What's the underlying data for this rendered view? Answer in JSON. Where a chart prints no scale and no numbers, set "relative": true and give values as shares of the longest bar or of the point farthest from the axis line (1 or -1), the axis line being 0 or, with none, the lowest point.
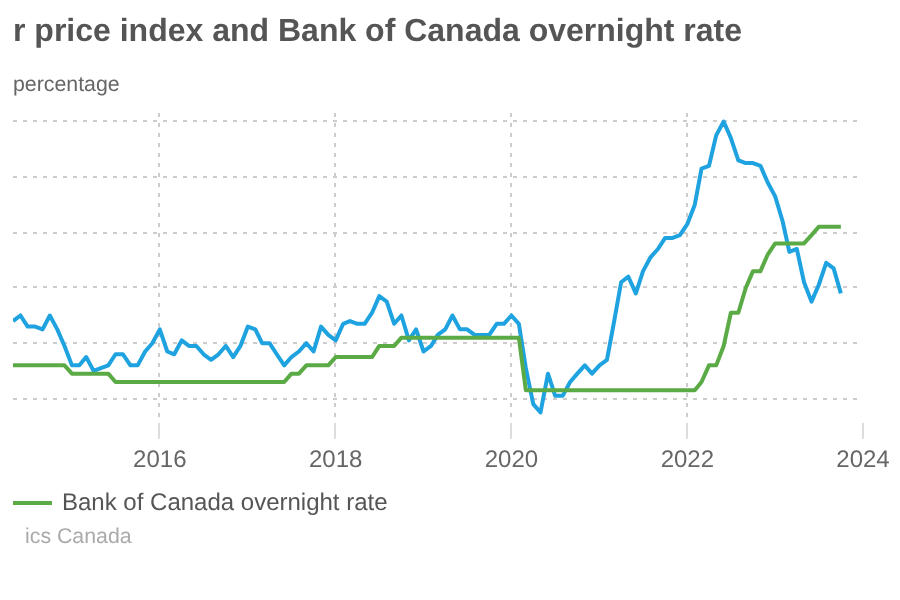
{
  "chart_data": {
    "type": "line",
    "title": "r price index and Bank of Canada overnight rate",
    "subtitle": "percentage",
    "annotations": [
      "ics Canada"
    ],
    "relative": true,
    "grid": true,
    "legend": "bottom",
    "line_style": "solid",
    "marker": "none",
    "xlim": [
      "2014-05",
      "2024-01"
    ],
    "xticks": [
      "2016",
      "2018",
      "2020",
      "2022",
      "2024"
    ],
    "x": [
      "2014-05",
      "2014-06",
      "2014-07",
      "2014-08",
      "2014-09",
      "2014-10",
      "2014-11",
      "2014-12",
      "2015-01",
      "2015-02",
      "2015-03",
      "2015-04",
      "2015-05",
      "2015-06",
      "2015-07",
      "2015-08",
      "2015-09",
      "2015-10",
      "2015-11",
      "2015-12",
      "2016-01",
      "2016-02",
      "2016-03",
      "2016-04",
      "2016-05",
      "2016-06",
      "2016-07",
      "2016-08",
      "2016-09",
      "2016-10",
      "2016-11",
      "2016-12",
      "2017-01",
      "2017-02",
      "2017-03",
      "2017-04",
      "2017-05",
      "2017-06",
      "2017-07",
      "2017-08",
      "2017-09",
      "2017-10",
      "2017-11",
      "2017-12",
      "2018-01",
      "2018-02",
      "2018-03",
      "2018-04",
      "2018-05",
      "2018-06",
      "2018-07",
      "2018-08",
      "2018-09",
      "2018-10",
      "2018-11",
      "2018-12",
      "2019-01",
      "2019-02",
      "2019-03",
      "2019-04",
      "2019-05",
      "2019-06",
      "2019-07",
      "2019-08",
      "2019-09",
      "2019-10",
      "2019-11",
      "2019-12",
      "2020-01",
      "2020-02",
      "2020-03",
      "2020-04",
      "2020-05",
      "2020-06",
      "2020-07",
      "2020-08",
      "2020-09",
      "2020-10",
      "2020-11",
      "2020-12",
      "2021-01",
      "2021-02",
      "2021-03",
      "2021-04",
      "2021-05",
      "2021-06",
      "2021-07",
      "2021-08",
      "2021-09",
      "2021-10",
      "2021-11",
      "2021-12",
      "2022-01",
      "2022-02",
      "2022-03",
      "2022-04",
      "2022-05",
      "2022-06",
      "2022-07",
      "2022-08",
      "2022-09",
      "2022-10",
      "2022-11",
      "2022-12",
      "2023-01",
      "2023-02",
      "2023-03",
      "2023-04",
      "2023-05",
      "2023-06",
      "2023-07",
      "2023-08",
      "2023-09",
      "2023-10"
    ],
    "series": [
      {
        "color": "#1fa3e0",
        "values": [
          0.28,
          0.3,
          0.26,
          0.26,
          0.25,
          0.3,
          0.25,
          0.19,
          0.12,
          0.12,
          0.15,
          0.1,
          0.11,
          0.12,
          0.16,
          0.16,
          0.12,
          0.12,
          0.17,
          0.2,
          0.25,
          0.17,
          0.16,
          0.21,
          0.19,
          0.19,
          0.16,
          0.14,
          0.16,
          0.19,
          0.15,
          0.19,
          0.26,
          0.25,
          0.2,
          0.2,
          0.16,
          0.12,
          0.15,
          0.17,
          0.2,
          0.17,
          0.26,
          0.23,
          0.21,
          0.27,
          0.28,
          0.27,
          0.27,
          0.31,
          0.37,
          0.35,
          0.27,
          0.3,
          0.21,
          0.25,
          0.17,
          0.19,
          0.23,
          0.25,
          0.3,
          0.25,
          0.25,
          0.23,
          0.23,
          0.23,
          0.27,
          0.27,
          0.3,
          0.27,
          0.11,
          -0.02,
          -0.05,
          0.09,
          0.01,
          0.01,
          0.06,
          0.09,
          0.12,
          0.09,
          0.12,
          0.14,
          0.27,
          0.42,
          0.44,
          0.38,
          0.46,
          0.51,
          0.54,
          0.58,
          0.58,
          0.59,
          0.63,
          0.7,
          0.83,
          0.84,
          0.95,
          1,
          0.94,
          0.86,
          0.85,
          0.85,
          0.84,
          0.78,
          0.73,
          0.64,
          0.53,
          0.54,
          0.42,
          0.35,
          0.41,
          0.49,
          0.47,
          0.38
        ]
      },
      {
        "name": "Bank of Canada overnight rate",
        "color": "#5aab46",
        "values": [
          0.12,
          0.12,
          0.12,
          0.12,
          0.12,
          0.12,
          0.12,
          0.12,
          0.09,
          0.09,
          0.09,
          0.09,
          0.09,
          0.09,
          0.06,
          0.06,
          0.06,
          0.06,
          0.06,
          0.06,
          0.06,
          0.06,
          0.06,
          0.06,
          0.06,
          0.06,
          0.06,
          0.06,
          0.06,
          0.06,
          0.06,
          0.06,
          0.06,
          0.06,
          0.06,
          0.06,
          0.06,
          0.06,
          0.09,
          0.09,
          0.12,
          0.12,
          0.12,
          0.12,
          0.15,
          0.15,
          0.15,
          0.15,
          0.15,
          0.15,
          0.19,
          0.19,
          0.19,
          0.22,
          0.22,
          0.22,
          0.22,
          0.22,
          0.22,
          0.22,
          0.22,
          0.22,
          0.22,
          0.22,
          0.22,
          0.22,
          0.22,
          0.22,
          0.22,
          0.22,
          0.03,
          0.03,
          0.03,
          0.03,
          0.03,
          0.03,
          0.03,
          0.03,
          0.03,
          0.03,
          0.03,
          0.03,
          0.03,
          0.03,
          0.03,
          0.03,
          0.03,
          0.03,
          0.03,
          0.03,
          0.03,
          0.03,
          0.03,
          0.03,
          0.06,
          0.12,
          0.12,
          0.19,
          0.31,
          0.31,
          0.4,
          0.46,
          0.46,
          0.52,
          0.56,
          0.56,
          0.56,
          0.56,
          0.56,
          0.59,
          0.62,
          0.62,
          0.62,
          0.62
        ]
      }
    ]
  }
}
